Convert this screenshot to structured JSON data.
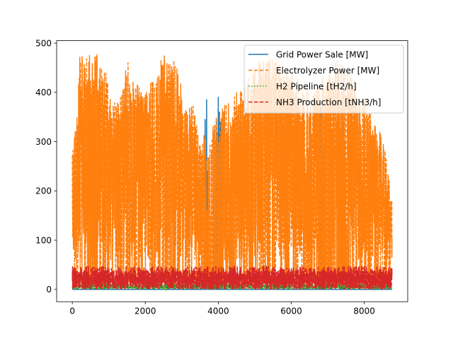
{
  "chart_data": {
    "type": "line",
    "title": "",
    "xlabel": "",
    "ylabel": "",
    "xlim": [
      -430,
      9190
    ],
    "ylim": [
      -25,
      505
    ],
    "x_ticks": [
      0,
      2000,
      4000,
      6000,
      8000
    ],
    "y_ticks": [
      0,
      100,
      200,
      300,
      400,
      500
    ],
    "grid": false,
    "legend_position": "top-right",
    "n_hours": 8760,
    "series": [
      {
        "name": "Grid Power Sale [MW]",
        "color": "#1f77b4",
        "style": "solid",
        "typical_value": 0,
        "spikes": [
          {
            "x": 3640,
            "y": 345
          },
          {
            "x": 3680,
            "y": 385
          },
          {
            "x": 3700,
            "y": 240
          },
          {
            "x": 3860,
            "y": 320
          },
          {
            "x": 3900,
            "y": 275
          },
          {
            "x": 3950,
            "y": 345
          },
          {
            "x": 4000,
            "y": 390
          },
          {
            "x": 4030,
            "y": 360
          },
          {
            "x": 4060,
            "y": 340
          },
          {
            "x": 4090,
            "y": 315
          },
          {
            "x": 6760,
            "y": 340
          },
          {
            "x": 6800,
            "y": 370
          },
          {
            "x": 6840,
            "y": 300
          },
          {
            "x": 6900,
            "y": 290
          },
          {
            "x": 7080,
            "y": 265
          },
          {
            "x": 7420,
            "y": 340
          },
          {
            "x": 7480,
            "y": 210
          }
        ]
      },
      {
        "name": "Electrolyzer Power [MW]",
        "color": "#ff7f0e",
        "style": "dashed",
        "range": [
          0,
          480
        ],
        "peaks": [
          {
            "x": 100,
            "y": 335
          },
          {
            "x": 200,
            "y": 480
          },
          {
            "x": 360,
            "y": 470
          },
          {
            "x": 560,
            "y": 480
          },
          {
            "x": 850,
            "y": 475
          },
          {
            "x": 1080,
            "y": 370
          },
          {
            "x": 1300,
            "y": 400
          },
          {
            "x": 1550,
            "y": 470
          },
          {
            "x": 1720,
            "y": 420
          },
          {
            "x": 2000,
            "y": 400
          },
          {
            "x": 2300,
            "y": 440
          },
          {
            "x": 2480,
            "y": 480
          },
          {
            "x": 2700,
            "y": 478
          },
          {
            "x": 2900,
            "y": 470
          },
          {
            "x": 3050,
            "y": 360
          },
          {
            "x": 3300,
            "y": 380
          },
          {
            "x": 3500,
            "y": 300
          },
          {
            "x": 4300,
            "y": 390
          },
          {
            "x": 4800,
            "y": 430
          },
          {
            "x": 5150,
            "y": 465
          },
          {
            "x": 5400,
            "y": 470
          },
          {
            "x": 5700,
            "y": 460
          },
          {
            "x": 6000,
            "y": 450
          },
          {
            "x": 6250,
            "y": 420
          },
          {
            "x": 6600,
            "y": 400
          },
          {
            "x": 7250,
            "y": 480
          },
          {
            "x": 7900,
            "y": 400
          },
          {
            "x": 8200,
            "y": 360
          },
          {
            "x": 8550,
            "y": 300
          },
          {
            "x": 8760,
            "y": 180
          }
        ]
      },
      {
        "name": "H2 Pipeline [tH2/h]",
        "color": "#2ca02c",
        "style": "dotted",
        "range": [
          0,
          12
        ]
      },
      {
        "name": "NH3 Production [tNH3/h]",
        "color": "#d62728",
        "style": "dashed",
        "range": [
          0,
          47
        ]
      }
    ]
  }
}
